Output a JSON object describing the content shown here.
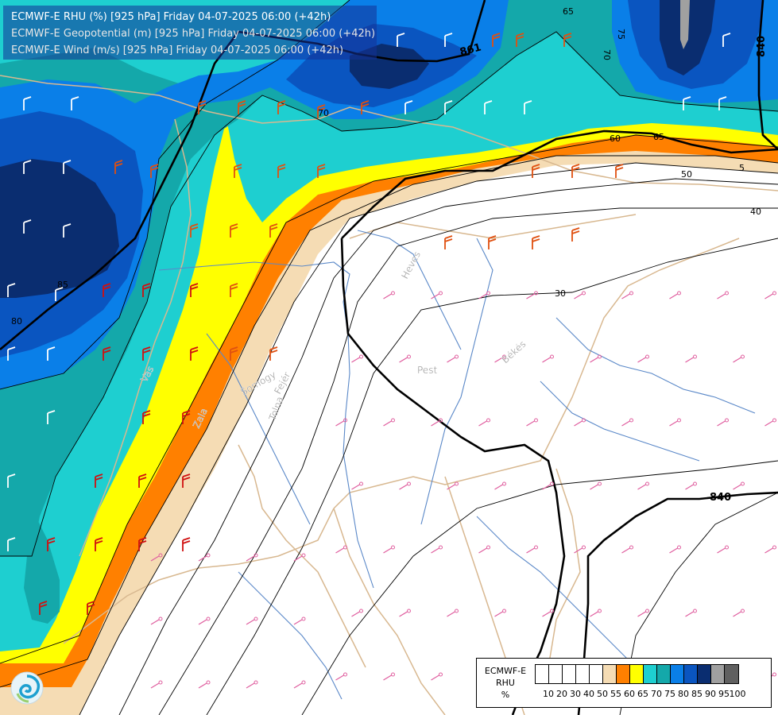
{
  "titles": {
    "line1": "ECMWF-E RHU (%) [925 hPa] Friday 04-07-2025 06:00 (+42h)",
    "line2": "ECMWF-E Geopotential (m) [925 hPa] Friday 04-07-2025 06:00 (+42h)",
    "line3": "ECMWF-E Wind (m/s) [925 hPa] Friday 04-07-2025 06:00 (+42h)"
  },
  "legend": {
    "label_model": "ECMWF-E",
    "label_var": "RHU",
    "label_unit": "%",
    "colors": [
      "#ffffff",
      "#ffffff",
      "#ffffff",
      "#ffffff",
      "#ffffff",
      "#f5dcb4",
      "#ff8000",
      "#ffff00",
      "#1ecfd0",
      "#14a8aa",
      "#0a7fe8",
      "#0a55c0",
      "#0a2d70",
      "#a0a0a0",
      "#606060"
    ],
    "ticks": [
      "10",
      "20",
      "30",
      "40",
      "50",
      "55",
      "60",
      "65",
      "70",
      "75",
      "80",
      "85",
      "90",
      "95",
      "100"
    ]
  },
  "geopotential_labels": {
    "g861": "861",
    "g840_right": "840",
    "g840_bottom": "840"
  },
  "rhu_labels": {
    "r65_top": "65",
    "r70_top": "70",
    "r75_top": "75",
    "r70_mid": "70",
    "r60": "60",
    "r65": "65",
    "r50": "50",
    "r5": "5",
    "r40": "40",
    "r30": "30",
    "r85": "85",
    "r80": "80"
  },
  "place_labels": {
    "heves": "Heves",
    "pest": "Pest",
    "bekes": "Békés",
    "somogy": "Somogy",
    "fejer": "Fejér",
    "tolna": "Tolna",
    "zala": "Zala",
    "vas": "Vas"
  },
  "colors": {
    "rhu_55": "#f5dcb4",
    "rhu_60": "#ff8000",
    "rhu_65": "#ffff00",
    "rhu_70": "#1ecfd0",
    "rhu_75": "#14a8aa",
    "rhu_80": "#0a7fe8",
    "rhu_85": "#0a55c0",
    "rhu_90": "#0a2d70",
    "border": "#d8b890",
    "river": "#5a88c8",
    "barb_dry": "#e060a0",
    "barb_orange": "#e05010",
    "barb_red": "#d01010"
  }
}
